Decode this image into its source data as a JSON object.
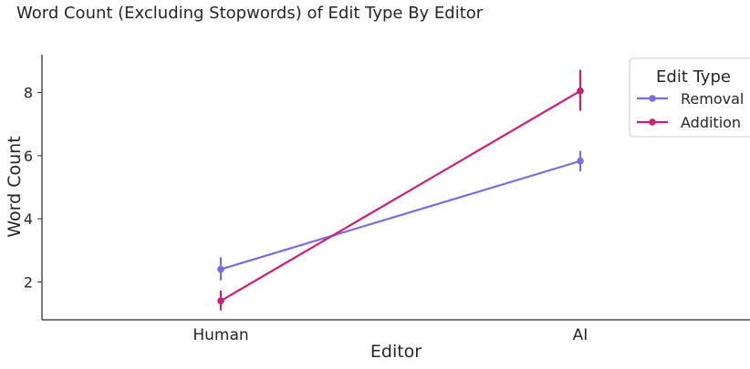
{
  "chart_data": {
    "type": "line",
    "title": "Word Count (Excluding Stopwords) of Edit Type By Editor",
    "xlabel": "Editor",
    "ylabel": "Word Count",
    "categories": [
      "Human",
      "AI"
    ],
    "ylim": [
      0.8,
      9.2
    ],
    "yticks": [
      2,
      4,
      6,
      8
    ],
    "grid": false,
    "legend": {
      "title": "Edit Type",
      "placement": "top-right"
    },
    "series": [
      {
        "name": "Removal",
        "color": "#7B6CE6",
        "values": [
          2.4,
          5.83
        ],
        "ci_low": [
          2.05,
          5.5
        ],
        "ci_high": [
          2.78,
          6.15
        ]
      },
      {
        "name": "Addition",
        "color": "#CC1F75",
        "values": [
          1.4,
          8.05
        ],
        "ci_low": [
          1.1,
          7.42
        ],
        "ci_high": [
          1.72,
          8.72
        ]
      }
    ]
  }
}
